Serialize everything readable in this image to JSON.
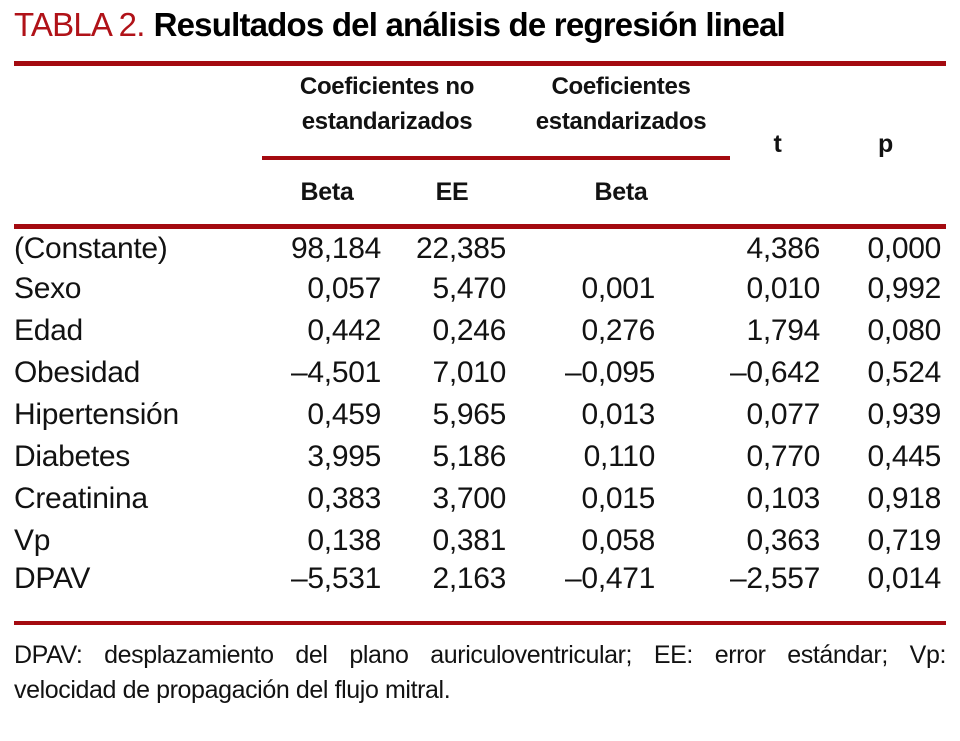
{
  "title": {
    "label": "TABLA 2.",
    "text": "Resultados del análisis de regresión lineal"
  },
  "colors": {
    "rule_red": "#A40A10",
    "title_red": "#B01218"
  },
  "table": {
    "group_headers": [
      "Coeficientes no estandarizados",
      "Coeficientes estandarizados"
    ],
    "sub_headers": [
      "Beta",
      "EE",
      "Beta"
    ],
    "stat_headers": [
      "t",
      "p"
    ],
    "rows": [
      {
        "label": "(Constante)",
        "beta_ns": "98,184",
        "ee": "22,385",
        "beta_s": "",
        "t": "4,386",
        "p": "0,000"
      },
      {
        "label": "Sexo",
        "beta_ns": "0,057",
        "ee": "5,470",
        "beta_s": "0,001",
        "t": "0,010",
        "p": "0,992"
      },
      {
        "label": "Edad",
        "beta_ns": "0,442",
        "ee": "0,246",
        "beta_s": "0,276",
        "t": "1,794",
        "p": "0,080"
      },
      {
        "label": "Obesidad",
        "beta_ns": "–4,501",
        "ee": "7,010",
        "beta_s": "–0,095",
        "t": "–0,642",
        "p": "0,524"
      },
      {
        "label": "Hipertensión",
        "beta_ns": "0,459",
        "ee": "5,965",
        "beta_s": "0,013",
        "t": "0,077",
        "p": "0,939"
      },
      {
        "label": "Diabetes",
        "beta_ns": "3,995",
        "ee": "5,186",
        "beta_s": "0,110",
        "t": "0,770",
        "p": "0,445"
      },
      {
        "label": "Creatinina",
        "beta_ns": "0,383",
        "ee": "3,700",
        "beta_s": "0,015",
        "t": "0,103",
        "p": "0,918"
      },
      {
        "label": "Vp",
        "beta_ns": "0,138",
        "ee": "0,381",
        "beta_s": "0,058",
        "t": "0,363",
        "p": "0,719"
      },
      {
        "label": "DPAV",
        "beta_ns": "–5,531",
        "ee": "2,163",
        "beta_s": "–0,471",
        "t": "–2,557",
        "p": "0,014"
      }
    ]
  },
  "footnote": {
    "line1": "DPAV: desplazamiento del plano auriculoventricular; EE: error estándar; Vp:",
    "line2": "velocidad de propagación del flujo mitral."
  }
}
